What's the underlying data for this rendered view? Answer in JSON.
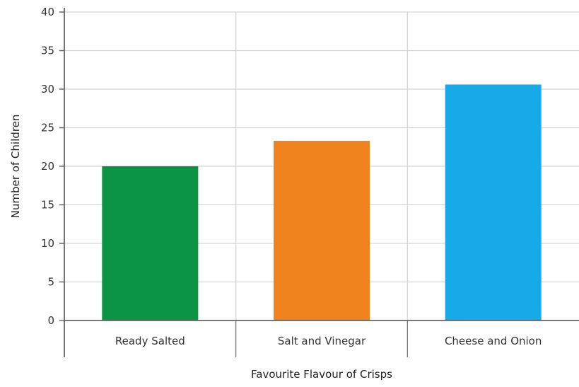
{
  "chart_data": {
    "type": "bar",
    "categories": [
      "Ready Salted",
      "Salt and Vinegar",
      "Cheese and Onion"
    ],
    "values": [
      20,
      23.3,
      30.6
    ],
    "bar_colors": [
      "#0a9444",
      "#f0831d",
      "#16aae8"
    ],
    "xlabel": "Favourite Flavour of Crisps",
    "ylabel": "Number of Children",
    "ylim": [
      0,
      40
    ],
    "yticks": [
      "0",
      "5",
      "10",
      "15",
      "20",
      "25",
      "30",
      "35",
      "40"
    ],
    "grid": true
  }
}
